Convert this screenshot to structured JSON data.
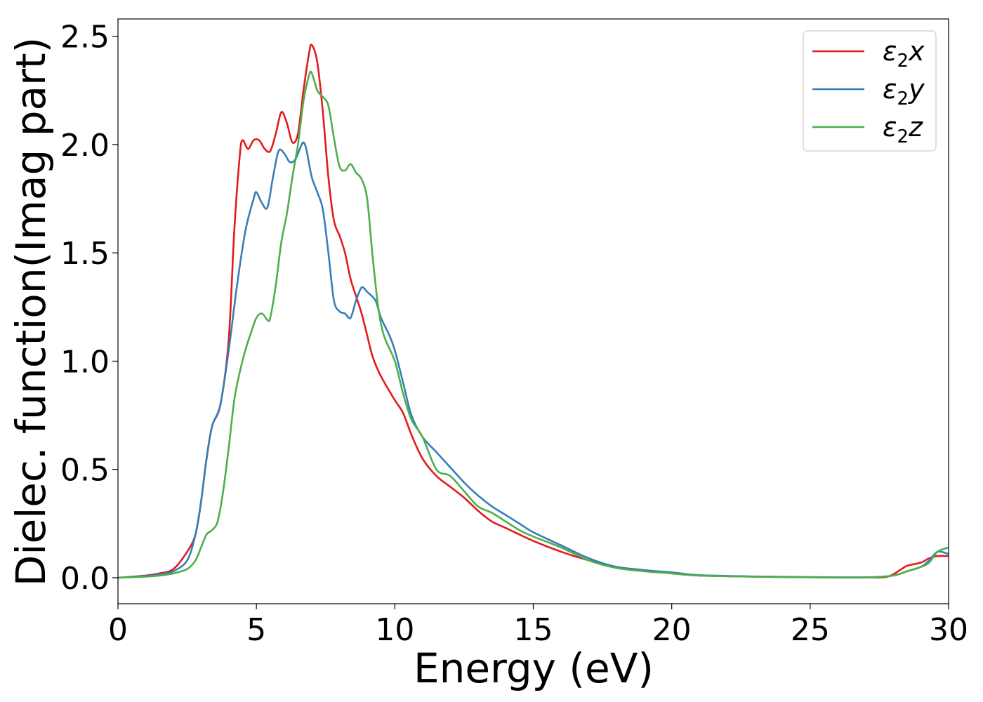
{
  "chart_data": {
    "type": "line",
    "xlabel": "Energy (eV)",
    "ylabel": "Dielec. function(Imag part)",
    "xlim": [
      0,
      30
    ],
    "ylim": [
      -0.12,
      2.58
    ],
    "xticks": [
      0,
      5,
      10,
      15,
      20,
      25,
      30
    ],
    "yticks": [
      0.0,
      0.5,
      1.0,
      1.5,
      2.0,
      2.5
    ],
    "xtick_labels": [
      "0",
      "5",
      "10",
      "15",
      "20",
      "25",
      "30"
    ],
    "ytick_labels": [
      "0.0",
      "0.5",
      "1.0",
      "1.5",
      "2.0",
      "2.5"
    ],
    "grid": false,
    "legend_position": "top-right",
    "series": [
      {
        "name": "ε₂x",
        "legend_base": "ε",
        "legend_sub": "2",
        "legend_suffix": "x",
        "color": "#e41a1c",
        "points": [
          [
            0,
            0
          ],
          [
            1,
            0.01
          ],
          [
            1.5,
            0.02
          ],
          [
            2,
            0.04
          ],
          [
            2.5,
            0.12
          ],
          [
            2.8,
            0.2
          ],
          [
            3,
            0.35
          ],
          [
            3.2,
            0.55
          ],
          [
            3.4,
            0.7
          ],
          [
            3.7,
            0.8
          ],
          [
            4,
            1.1
          ],
          [
            4.2,
            1.6
          ],
          [
            4.4,
            1.95
          ],
          [
            4.5,
            2.02
          ],
          [
            4.7,
            1.98
          ],
          [
            4.9,
            2.02
          ],
          [
            5.1,
            2.02
          ],
          [
            5.3,
            1.98
          ],
          [
            5.5,
            1.97
          ],
          [
            5.7,
            2.05
          ],
          [
            5.9,
            2.15
          ],
          [
            6.1,
            2.1
          ],
          [
            6.3,
            2.01
          ],
          [
            6.5,
            2.05
          ],
          [
            6.7,
            2.25
          ],
          [
            6.9,
            2.42
          ],
          [
            7.0,
            2.46
          ],
          [
            7.2,
            2.38
          ],
          [
            7.4,
            2.15
          ],
          [
            7.6,
            1.85
          ],
          [
            7.8,
            1.65
          ],
          [
            8.0,
            1.58
          ],
          [
            8.2,
            1.5
          ],
          [
            8.4,
            1.38
          ],
          [
            8.6,
            1.3
          ],
          [
            8.8,
            1.22
          ],
          [
            9.0,
            1.12
          ],
          [
            9.2,
            1.02
          ],
          [
            9.5,
            0.93
          ],
          [
            10,
            0.82
          ],
          [
            10.3,
            0.76
          ],
          [
            10.6,
            0.66
          ],
          [
            11,
            0.55
          ],
          [
            11.5,
            0.47
          ],
          [
            12,
            0.42
          ],
          [
            12.5,
            0.37
          ],
          [
            13,
            0.31
          ],
          [
            13.5,
            0.26
          ],
          [
            14,
            0.23
          ],
          [
            15,
            0.17
          ],
          [
            16,
            0.12
          ],
          [
            17,
            0.08
          ],
          [
            18,
            0.05
          ],
          [
            19,
            0.035
          ],
          [
            20,
            0.02
          ],
          [
            21,
            0.01
          ],
          [
            23,
            0.005
          ],
          [
            25,
            0.002
          ],
          [
            27,
            0.001
          ],
          [
            27.8,
            0.005
          ],
          [
            28.3,
            0.04
          ],
          [
            28.5,
            0.055
          ],
          [
            29,
            0.07
          ],
          [
            29.3,
            0.09
          ],
          [
            29.6,
            0.1
          ],
          [
            30,
            0.1
          ]
        ]
      },
      {
        "name": "ε₂y",
        "legend_base": "ε",
        "legend_sub": "2",
        "legend_suffix": "y",
        "color": "#377eb8",
        "points": [
          [
            0,
            0
          ],
          [
            1,
            0.008
          ],
          [
            1.5,
            0.015
          ],
          [
            2,
            0.03
          ],
          [
            2.5,
            0.08
          ],
          [
            2.8,
            0.2
          ],
          [
            3,
            0.35
          ],
          [
            3.2,
            0.55
          ],
          [
            3.4,
            0.7
          ],
          [
            3.7,
            0.8
          ],
          [
            4,
            1.05
          ],
          [
            4.3,
            1.35
          ],
          [
            4.6,
            1.6
          ],
          [
            4.9,
            1.75
          ],
          [
            5.0,
            1.78
          ],
          [
            5.2,
            1.73
          ],
          [
            5.4,
            1.71
          ],
          [
            5.6,
            1.85
          ],
          [
            5.8,
            1.97
          ],
          [
            6.0,
            1.96
          ],
          [
            6.2,
            1.92
          ],
          [
            6.4,
            1.93
          ],
          [
            6.6,
            1.99
          ],
          [
            6.7,
            2.01
          ],
          [
            6.8,
            1.98
          ],
          [
            7.0,
            1.85
          ],
          [
            7.2,
            1.78
          ],
          [
            7.4,
            1.7
          ],
          [
            7.6,
            1.5
          ],
          [
            7.8,
            1.28
          ],
          [
            8.0,
            1.23
          ],
          [
            8.2,
            1.22
          ],
          [
            8.4,
            1.2
          ],
          [
            8.6,
            1.28
          ],
          [
            8.8,
            1.34
          ],
          [
            9.0,
            1.32
          ],
          [
            9.3,
            1.28
          ],
          [
            9.5,
            1.2
          ],
          [
            9.8,
            1.12
          ],
          [
            10,
            1.05
          ],
          [
            10.3,
            0.9
          ],
          [
            10.6,
            0.75
          ],
          [
            11,
            0.65
          ],
          [
            11.5,
            0.58
          ],
          [
            12,
            0.51
          ],
          [
            12.5,
            0.44
          ],
          [
            13,
            0.38
          ],
          [
            13.5,
            0.33
          ],
          [
            14,
            0.29
          ],
          [
            14.5,
            0.25
          ],
          [
            15,
            0.21
          ],
          [
            16,
            0.15
          ],
          [
            17,
            0.09
          ],
          [
            18,
            0.05
          ],
          [
            19,
            0.035
          ],
          [
            20,
            0.025
          ],
          [
            21,
            0.012
          ],
          [
            23,
            0.006
          ],
          [
            25,
            0.003
          ],
          [
            27,
            0.002
          ],
          [
            28,
            0.01
          ],
          [
            28.5,
            0.03
          ],
          [
            29,
            0.05
          ],
          [
            29.3,
            0.08
          ],
          [
            29.6,
            0.12
          ],
          [
            30,
            0.11
          ]
        ]
      },
      {
        "name": "ε₂z",
        "legend_base": "ε",
        "legend_sub": "2",
        "legend_suffix": "z",
        "color": "#4daf4a",
        "points": [
          [
            0,
            0
          ],
          [
            1,
            0.005
          ],
          [
            1.5,
            0.01
          ],
          [
            2,
            0.02
          ],
          [
            2.5,
            0.04
          ],
          [
            2.8,
            0.08
          ],
          [
            3,
            0.14
          ],
          [
            3.2,
            0.2
          ],
          [
            3.4,
            0.22
          ],
          [
            3.6,
            0.26
          ],
          [
            3.8,
            0.4
          ],
          [
            4.0,
            0.6
          ],
          [
            4.2,
            0.82
          ],
          [
            4.4,
            0.95
          ],
          [
            4.6,
            1.05
          ],
          [
            4.8,
            1.13
          ],
          [
            5.0,
            1.2
          ],
          [
            5.2,
            1.22
          ],
          [
            5.4,
            1.19
          ],
          [
            5.5,
            1.2
          ],
          [
            5.7,
            1.35
          ],
          [
            5.9,
            1.55
          ],
          [
            6.1,
            1.68
          ],
          [
            6.3,
            1.85
          ],
          [
            6.5,
            2.0
          ],
          [
            6.7,
            2.2
          ],
          [
            6.9,
            2.32
          ],
          [
            7.0,
            2.33
          ],
          [
            7.2,
            2.25
          ],
          [
            7.4,
            2.22
          ],
          [
            7.6,
            2.18
          ],
          [
            7.8,
            2.03
          ],
          [
            8.0,
            1.9
          ],
          [
            8.2,
            1.88
          ],
          [
            8.4,
            1.91
          ],
          [
            8.6,
            1.87
          ],
          [
            8.8,
            1.84
          ],
          [
            9.0,
            1.75
          ],
          [
            9.2,
            1.48
          ],
          [
            9.4,
            1.25
          ],
          [
            9.6,
            1.12
          ],
          [
            10,
            1.0
          ],
          [
            10.3,
            0.85
          ],
          [
            10.6,
            0.73
          ],
          [
            11,
            0.65
          ],
          [
            11.5,
            0.5
          ],
          [
            12,
            0.47
          ],
          [
            12.5,
            0.4
          ],
          [
            13,
            0.33
          ],
          [
            13.5,
            0.3
          ],
          [
            14,
            0.26
          ],
          [
            14.5,
            0.22
          ],
          [
            15,
            0.19
          ],
          [
            16,
            0.14
          ],
          [
            17,
            0.08
          ],
          [
            18,
            0.045
          ],
          [
            19,
            0.03
          ],
          [
            20,
            0.02
          ],
          [
            21,
            0.01
          ],
          [
            23,
            0.005
          ],
          [
            25,
            0.002
          ],
          [
            27,
            0.001
          ],
          [
            28,
            0.01
          ],
          [
            28.5,
            0.03
          ],
          [
            29,
            0.05
          ],
          [
            29.3,
            0.07
          ],
          [
            29.6,
            0.12
          ],
          [
            30,
            0.14
          ]
        ]
      }
    ]
  }
}
